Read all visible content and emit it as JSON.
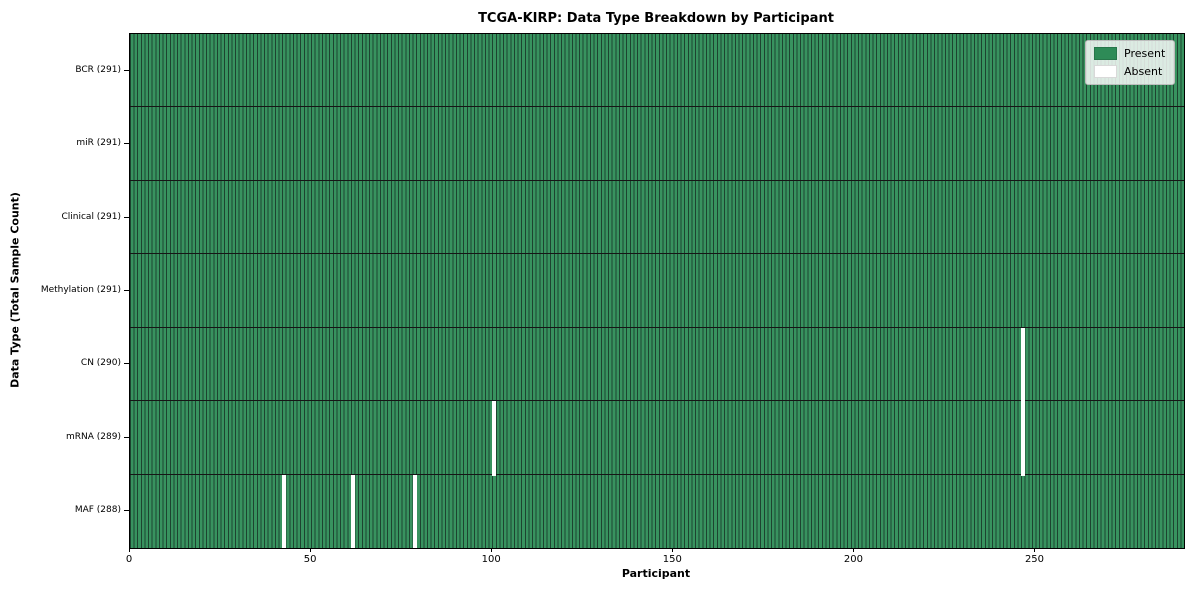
{
  "figure": {
    "title": "TCGA-KIRP: Data Type Breakdown by Participant",
    "xlabel": "Participant",
    "ylabel": "Data Type (Total Sample Count)"
  },
  "chart_data": {
    "type": "heatmap",
    "title": "TCGA-KIRP: Data Type Breakdown by Participant",
    "xlabel": "Participant",
    "ylabel": "Data Type (Total Sample Count)",
    "x_range": [
      0,
      291
    ],
    "n_participants": 291,
    "x_ticks": [
      0,
      50,
      100,
      150,
      200,
      250
    ],
    "grid": false,
    "legend_position": "upper right",
    "rows": [
      {
        "label": "BCR (291)",
        "data_type": "BCR",
        "present_count": 291,
        "absent_participants": []
      },
      {
        "label": "miR (291)",
        "data_type": "miR",
        "present_count": 291,
        "absent_participants": []
      },
      {
        "label": "Clinical (291)",
        "data_type": "Clinical",
        "present_count": 291,
        "absent_participants": []
      },
      {
        "label": "Methylation (291)",
        "data_type": "Methylation",
        "present_count": 291,
        "absent_participants": []
      },
      {
        "label": "CN (290)",
        "data_type": "CN",
        "present_count": 290,
        "absent_participants": [
          246
        ]
      },
      {
        "label": "mRNA (289)",
        "data_type": "mRNA",
        "present_count": 289,
        "absent_participants": [
          100,
          246
        ]
      },
      {
        "label": "MAF (288)",
        "data_type": "MAF",
        "present_count": 288,
        "absent_participants": [
          42,
          61,
          78
        ]
      }
    ],
    "legend": [
      {
        "label": "Present",
        "color": "#2e8b57"
      },
      {
        "label": "Absent",
        "color": "#ffffff"
      }
    ],
    "colors": {
      "present_fill": "#38935f",
      "cell_edge": "#1d4430",
      "absent_fill": "#ffffff",
      "row_separator": "#161616",
      "legend_present": "#2e8b57",
      "legend_absent": "#ffffff"
    }
  }
}
